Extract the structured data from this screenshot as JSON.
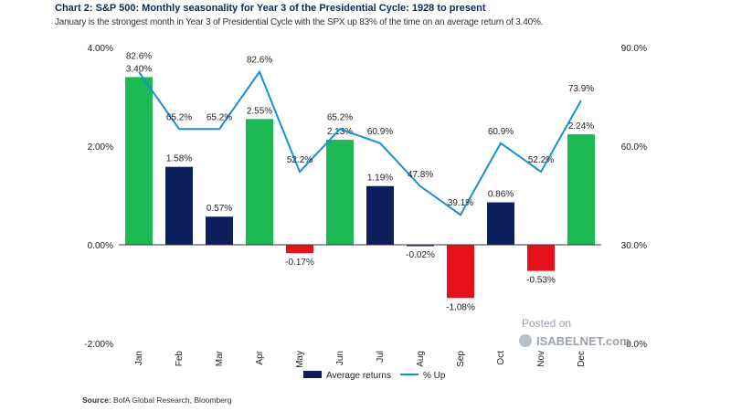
{
  "chart_data": {
    "type": "bar",
    "title": "Chart 2: S&P 500: Monthly seasonality for Year 3 of the Presidential Cycle: 1928 to present",
    "subtitle": "January is the strongest month in Year 3 of Presidential Cycle with the SPX up 83% of the time on an average return of 3.40%.",
    "categories": [
      "Jan",
      "Feb",
      "Mar",
      "Apr",
      "May",
      "Jun",
      "Jul",
      "Aug",
      "Sep",
      "Oct",
      "Nov",
      "Dec"
    ],
    "series": [
      {
        "name": "Average returns",
        "axis": "left",
        "values": [
          3.4,
          1.58,
          0.57,
          2.55,
          -0.17,
          2.13,
          1.19,
          -0.02,
          -1.08,
          0.86,
          -0.53,
          2.24
        ],
        "labels": [
          "3.40%",
          "1.58%",
          "0.57%",
          "2.55%",
          "-0.17%",
          "2.13%",
          "1.19%",
          "-0.02%",
          "-1.08%",
          "0.86%",
          "-0.53%",
          "2.24%"
        ],
        "colors": [
          "#1db954",
          "#0c1f5c",
          "#0c1f5c",
          "#1db954",
          "#e8101a",
          "#1db954",
          "#0c1f5c",
          "#0c1f5c",
          "#e8101a",
          "#0c1f5c",
          "#e8101a",
          "#1db954"
        ]
      },
      {
        "name": "% Up",
        "axis": "right",
        "type": "line",
        "color": "#1b8fd6",
        "values": [
          82.6,
          65.2,
          65.2,
          82.6,
          52.2,
          65.2,
          60.9,
          47.8,
          39.1,
          60.9,
          52.2,
          73.9
        ],
        "labels": [
          "82.6%",
          "65.2%",
          "65.2%",
          "82.6%",
          "52.2%",
          "65.2%",
          "60.9%",
          "47.8%",
          "39.1%",
          "60.9%",
          "52.2%",
          "73.9%"
        ]
      }
    ],
    "ylim_left": [
      -2,
      4
    ],
    "yticks_left": [
      -2,
      0,
      2,
      4
    ],
    "yticklabels_left": [
      "-2.00%",
      "0.00%",
      "2.00%",
      "4.00%"
    ],
    "ylim_right": [
      0,
      90
    ],
    "yticks_right": [
      0,
      30,
      60,
      90
    ],
    "yticklabels_right": [
      "0.0%",
      "30.0%",
      "60.0%",
      "90.0%"
    ],
    "legend": [
      "Average returns",
      "% Up"
    ],
    "legend_position": "bottom-center",
    "grid": false
  },
  "watermark": {
    "line1": "Posted on",
    "line2": "ISABELNET.com"
  },
  "source": {
    "label": "Source:",
    "text": "BofA Global Research, Bloomberg"
  }
}
